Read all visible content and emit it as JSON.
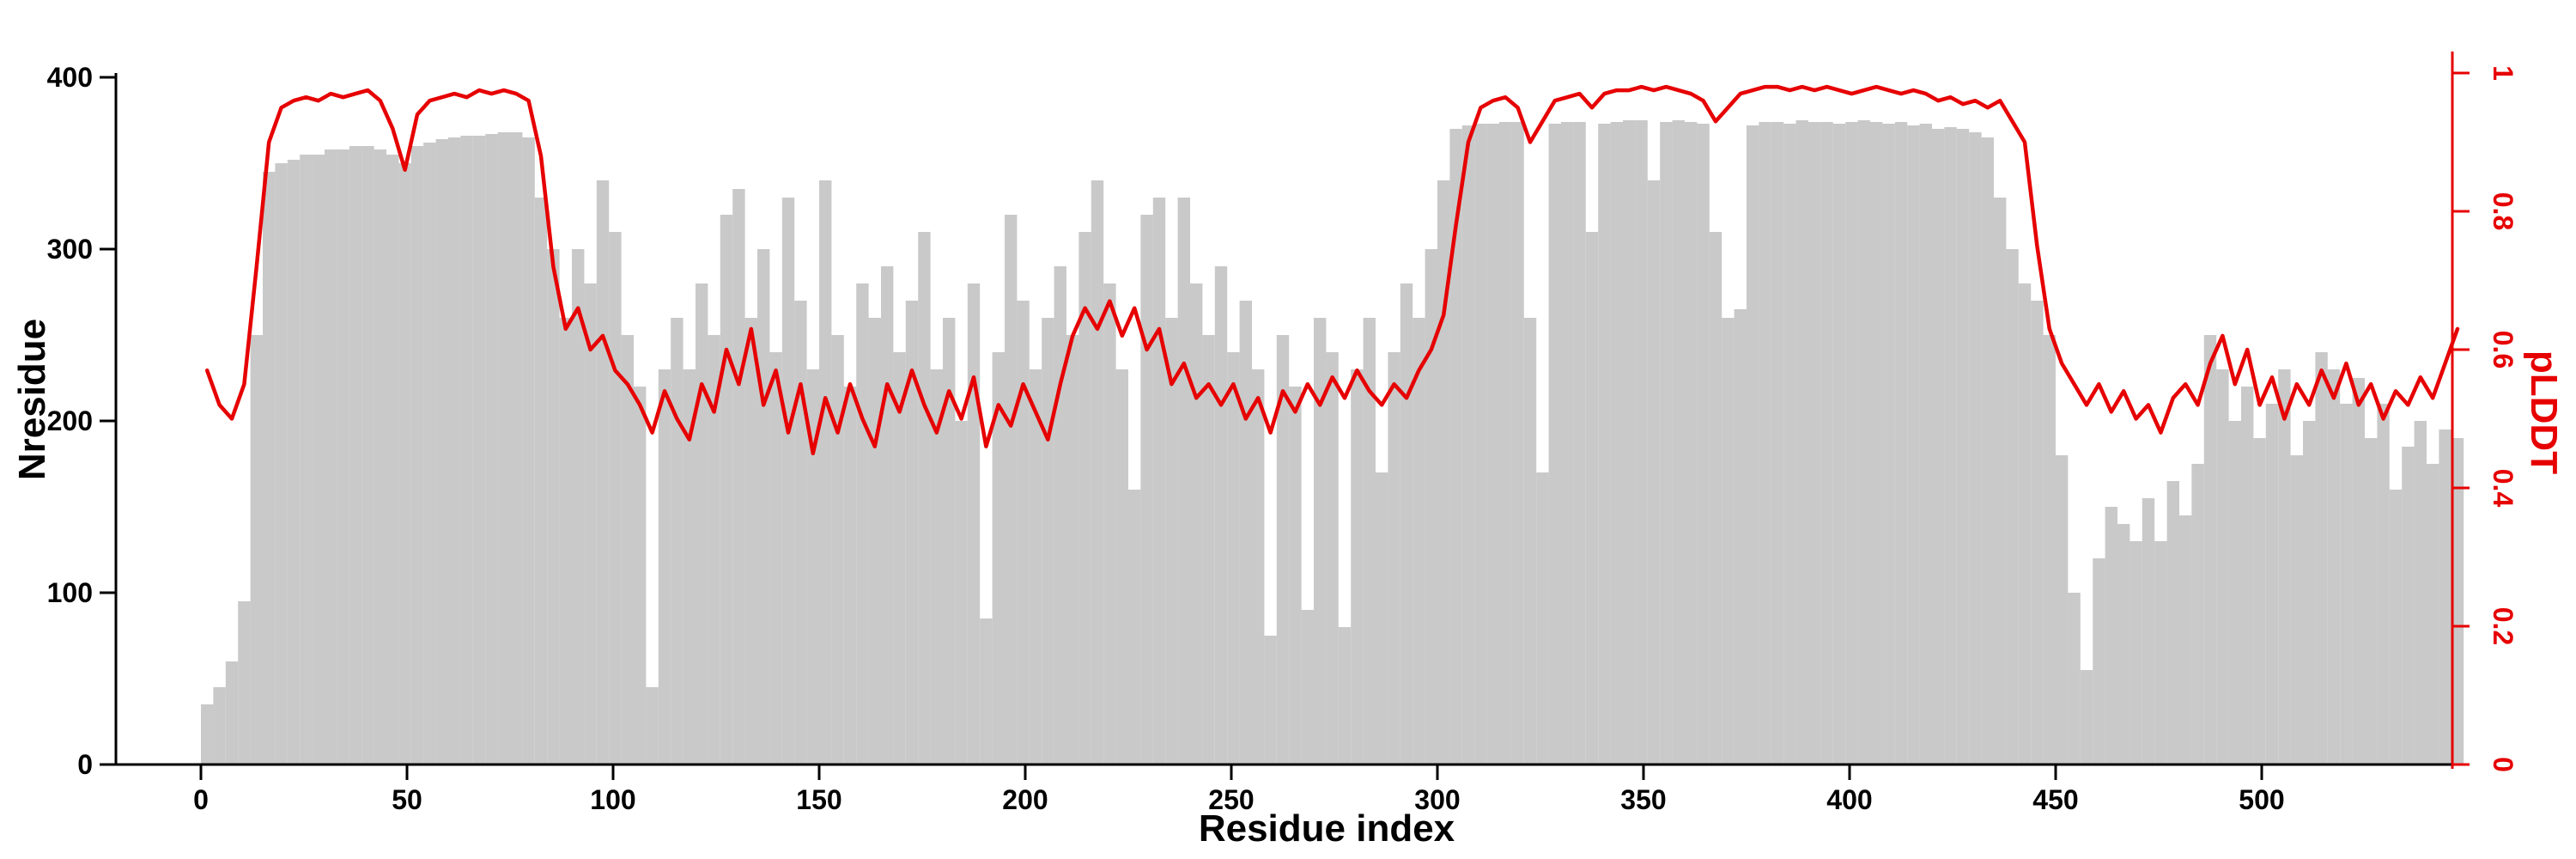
{
  "figure": {
    "background": "#ffffff"
  },
  "chart_data": {
    "type": "bar",
    "subtype": "dual-axis bar + line overlay",
    "title": "",
    "xlabel": "Residue index",
    "left_ylabel": "Nresidue",
    "right_ylabel": "pLDDT",
    "xlim": [
      0,
      560
    ],
    "left_ylim": [
      0,
      400
    ],
    "right_ylim": [
      0,
      1
    ],
    "x_ticks": [
      0,
      50,
      100,
      150,
      200,
      250,
      300,
      350,
      400,
      450,
      500
    ],
    "left_ticks": [
      0,
      100,
      200,
      300,
      400
    ],
    "right_ticks": [
      0,
      0.2,
      0.4,
      0.6,
      0.8,
      1
    ],
    "grid": false,
    "legend": "none",
    "axis_color": "#000000",
    "right_axis_color": "#e60000",
    "x_start": 0,
    "x_step": 3,
    "series": [
      {
        "name": "Nresidue",
        "kind": "bar",
        "axis": "left",
        "color": "#c9c9c9",
        "values": [
          35,
          45,
          60,
          95,
          250,
          345,
          350,
          352,
          355,
          355,
          358,
          358,
          360,
          360,
          358,
          355,
          350,
          360,
          362,
          364,
          365,
          366,
          366,
          367,
          368,
          368,
          365,
          330,
          300,
          260,
          300,
          280,
          340,
          310,
          250,
          220,
          45,
          230,
          260,
          230,
          280,
          250,
          320,
          335,
          260,
          300,
          240,
          330,
          270,
          230,
          340,
          250,
          220,
          280,
          260,
          290,
          240,
          270,
          310,
          230,
          260,
          200,
          280,
          85,
          240,
          320,
          270,
          230,
          260,
          290,
          250,
          310,
          340,
          280,
          230,
          160,
          320,
          330,
          260,
          330,
          280,
          250,
          290,
          240,
          270,
          230,
          75,
          250,
          220,
          90,
          260,
          240,
          80,
          230,
          260,
          170,
          240,
          280,
          260,
          300,
          340,
          370,
          372,
          373,
          373,
          374,
          374,
          260,
          170,
          373,
          374,
          374,
          310,
          373,
          374,
          375,
          375,
          340,
          374,
          375,
          374,
          373,
          310,
          260,
          265,
          372,
          374,
          374,
          373,
          375,
          374,
          374,
          373,
          374,
          375,
          374,
          373,
          374,
          372,
          373,
          370,
          371,
          370,
          368,
          365,
          330,
          300,
          280,
          270,
          250,
          180,
          100,
          55,
          120,
          150,
          140,
          130,
          155,
          130,
          165,
          145,
          175,
          250,
          230,
          200,
          220,
          190,
          210,
          230,
          180,
          200,
          240,
          230,
          210,
          225,
          190,
          210,
          160,
          185,
          200,
          175,
          195,
          190
        ]
      },
      {
        "name": "pLDDT",
        "kind": "line",
        "axis": "right",
        "color": "#e60000",
        "values": [
          0.57,
          0.52,
          0.5,
          0.55,
          0.72,
          0.9,
          0.95,
          0.96,
          0.965,
          0.96,
          0.97,
          0.965,
          0.97,
          0.975,
          0.96,
          0.92,
          0.86,
          0.94,
          0.96,
          0.965,
          0.97,
          0.965,
          0.975,
          0.97,
          0.975,
          0.97,
          0.96,
          0.88,
          0.72,
          0.63,
          0.66,
          0.6,
          0.62,
          0.57,
          0.55,
          0.52,
          0.48,
          0.54,
          0.5,
          0.47,
          0.55,
          0.51,
          0.6,
          0.55,
          0.63,
          0.52,
          0.57,
          0.48,
          0.55,
          0.45,
          0.53,
          0.48,
          0.55,
          0.5,
          0.46,
          0.55,
          0.51,
          0.57,
          0.52,
          0.48,
          0.54,
          0.5,
          0.56,
          0.46,
          0.52,
          0.49,
          0.55,
          0.51,
          0.47,
          0.55,
          0.62,
          0.66,
          0.63,
          0.67,
          0.62,
          0.66,
          0.6,
          0.63,
          0.55,
          0.58,
          0.53,
          0.55,
          0.52,
          0.55,
          0.5,
          0.53,
          0.48,
          0.54,
          0.51,
          0.55,
          0.52,
          0.56,
          0.53,
          0.57,
          0.54,
          0.52,
          0.55,
          0.53,
          0.57,
          0.6,
          0.65,
          0.78,
          0.9,
          0.95,
          0.96,
          0.965,
          0.95,
          0.9,
          0.93,
          0.96,
          0.965,
          0.97,
          0.95,
          0.97,
          0.975,
          0.975,
          0.98,
          0.975,
          0.98,
          0.975,
          0.97,
          0.96,
          0.93,
          0.95,
          0.97,
          0.975,
          0.98,
          0.98,
          0.975,
          0.98,
          0.975,
          0.98,
          0.975,
          0.97,
          0.975,
          0.98,
          0.975,
          0.97,
          0.975,
          0.97,
          0.96,
          0.965,
          0.955,
          0.96,
          0.95,
          0.96,
          0.93,
          0.9,
          0.75,
          0.63,
          0.58,
          0.55,
          0.52,
          0.55,
          0.51,
          0.54,
          0.5,
          0.52,
          0.48,
          0.53,
          0.55,
          0.52,
          0.58,
          0.62,
          0.55,
          0.6,
          0.52,
          0.56,
          0.5,
          0.55,
          0.52,
          0.57,
          0.53,
          0.58,
          0.52,
          0.55,
          0.5,
          0.54,
          0.52,
          0.56,
          0.53,
          0.58,
          0.63
        ]
      }
    ]
  }
}
